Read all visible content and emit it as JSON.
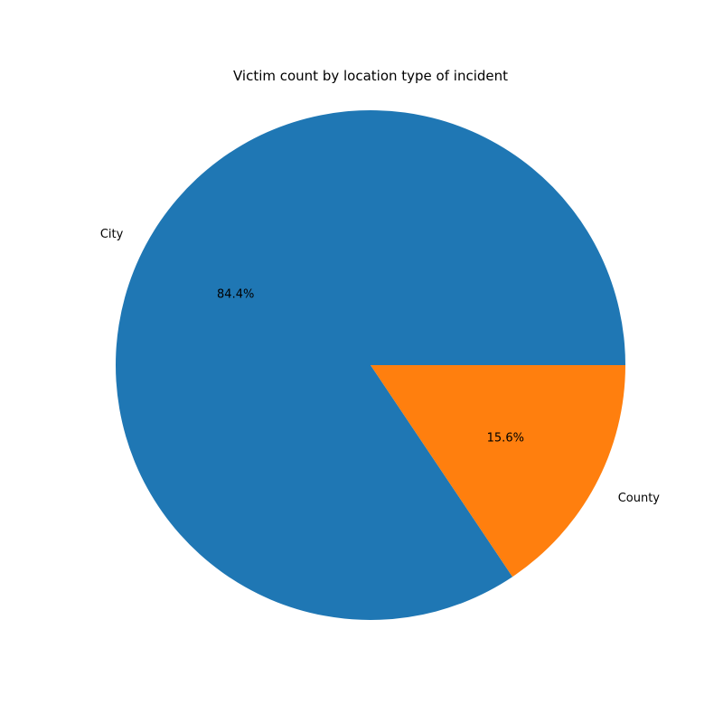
{
  "chart_data": {
    "type": "pie",
    "title": "Victim count by location type of incident",
    "categories": [
      "City",
      "County"
    ],
    "values": [
      84.4,
      15.6
    ],
    "percent_labels": [
      "84.4%",
      "15.6%"
    ],
    "colors": [
      "#1f77b4",
      "#ff7f0e"
    ],
    "start_angle_deg": 0,
    "direction": "counterclockwise",
    "legend": "none"
  }
}
